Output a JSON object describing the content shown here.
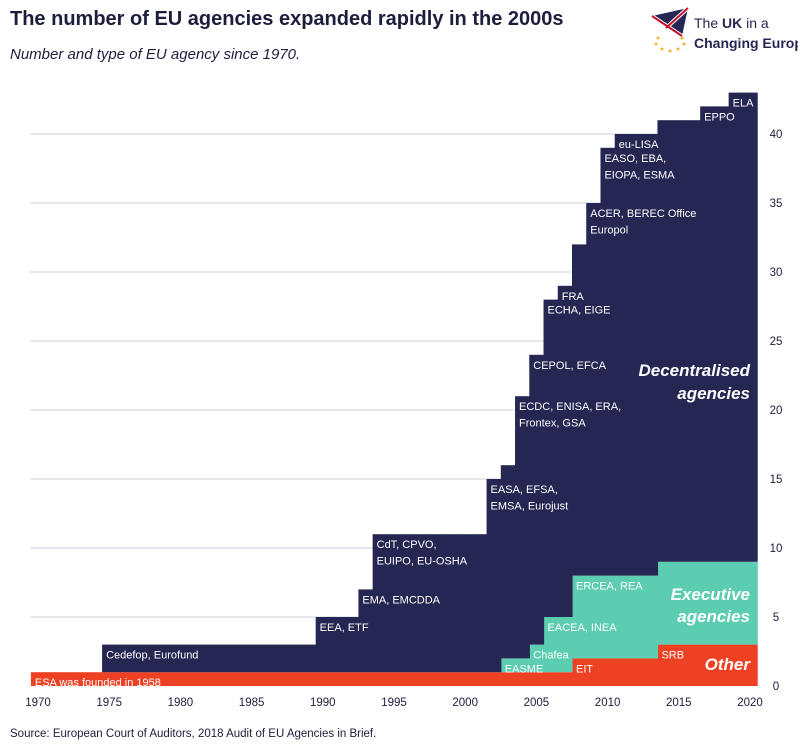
{
  "header": {
    "title": "The number of EU agencies expanded rapidly in the 2000s",
    "subtitle": "Number and type of EU agency since 1970.",
    "logo_text": "The UK in a Changing Europe"
  },
  "footer": {
    "source": "Source: European Court of Auditors, 2018 Audit of EU Agencies in Brief."
  },
  "colors": {
    "decentralised": "#262653",
    "executive": "#5ccdb0",
    "other": "#ee4023",
    "grid": "#cfcfdc",
    "text": "#1d1d3d"
  },
  "chart_data": {
    "type": "area",
    "stacked": true,
    "step": true,
    "xlim": [
      1970,
      2020
    ],
    "ylim": [
      0,
      43
    ],
    "x_ticks": [
      "1970",
      "1975",
      "1980",
      "1985",
      "1990",
      "1995",
      "2000",
      "2005",
      "2010",
      "2015",
      "2020"
    ],
    "y_ticks": [
      "0",
      "5",
      "10",
      "15",
      "20",
      "25",
      "30",
      "35",
      "40"
    ],
    "y_axis_side": "right",
    "grid": true,
    "x": [
      1970,
      1971,
      1972,
      1973,
      1974,
      1975,
      1976,
      1977,
      1978,
      1979,
      1980,
      1981,
      1982,
      1983,
      1984,
      1985,
      1986,
      1987,
      1988,
      1989,
      1990,
      1991,
      1992,
      1993,
      1994,
      1995,
      1996,
      1997,
      1998,
      1999,
      2000,
      2001,
      2002,
      2003,
      2004,
      2005,
      2006,
      2007,
      2008,
      2009,
      2010,
      2011,
      2012,
      2013,
      2014,
      2015,
      2016,
      2017,
      2018,
      2019,
      2020
    ],
    "series": [
      {
        "name": "Other",
        "color": "#ee4023",
        "values": [
          1,
          1,
          1,
          1,
          1,
          1,
          1,
          1,
          1,
          1,
          1,
          1,
          1,
          1,
          1,
          1,
          1,
          1,
          1,
          1,
          1,
          1,
          1,
          1,
          1,
          1,
          1,
          1,
          1,
          1,
          1,
          1,
          1,
          1,
          1,
          1,
          1,
          1,
          2,
          2,
          2,
          2,
          2,
          2,
          3,
          3,
          3,
          3,
          3,
          3,
          3
        ]
      },
      {
        "name": "Executive agencies",
        "color": "#5ccdb0",
        "values": [
          0,
          0,
          0,
          0,
          0,
          0,
          0,
          0,
          0,
          0,
          0,
          0,
          0,
          0,
          0,
          0,
          0,
          0,
          0,
          0,
          0,
          0,
          0,
          0,
          0,
          0,
          0,
          0,
          0,
          0,
          0,
          0,
          0,
          1,
          1,
          2,
          4,
          4,
          6,
          6,
          6,
          6,
          6,
          6,
          6,
          6,
          6,
          6,
          6,
          6,
          6
        ]
      },
      {
        "name": "Decentralised agencies",
        "color": "#262653",
        "values": [
          0,
          0,
          0,
          0,
          0,
          2,
          2,
          2,
          2,
          2,
          2,
          2,
          2,
          2,
          2,
          2,
          2,
          2,
          2,
          2,
          4,
          4,
          4,
          6,
          10,
          10,
          10,
          10,
          10,
          10,
          10,
          10,
          14,
          14,
          19,
          21,
          23,
          24,
          24,
          27,
          31,
          32,
          32,
          32,
          32,
          32,
          32,
          33,
          33,
          34,
          34
        ]
      }
    ],
    "series_labels": [
      [
        "Decentralised",
        "agencies"
      ],
      [
        "Executive",
        "agencies"
      ],
      [
        "Other"
      ]
    ],
    "annotations": [
      {
        "year": 1970,
        "series": "Other",
        "lines": [
          "ESA was founded in 1958"
        ]
      },
      {
        "year": 1975,
        "series": "Decentralised agencies",
        "lines": [
          "Cedefop, Eurofund"
        ]
      },
      {
        "year": 1990,
        "series": "Decentralised agencies",
        "lines": [
          "EEA, ETF"
        ]
      },
      {
        "year": 1993,
        "series": "Decentralised agencies",
        "lines": [
          "EMA, EMCDDA"
        ]
      },
      {
        "year": 1994,
        "series": "Decentralised agencies",
        "lines": [
          "CdT, CPVO,",
          "EUIPO, EU-OSHA"
        ]
      },
      {
        "year": 2002,
        "series": "Decentralised agencies",
        "lines": [
          "EASA, EFSA,",
          "EMSA, Eurojust"
        ]
      },
      {
        "year": 2004,
        "series": "Decentralised agencies",
        "lines": [
          "ECDC, ENISA, ERA,",
          "Frontex, GSA"
        ]
      },
      {
        "year": 2005,
        "series": "Decentralised agencies",
        "lines": [
          "CEPOL, EFCA"
        ]
      },
      {
        "year": 2006,
        "series": "Decentralised agencies",
        "lines": [
          "ECHA, EIGE"
        ]
      },
      {
        "year": 2007,
        "series": "Decentralised agencies",
        "lines": [
          "FRA"
        ]
      },
      {
        "year": 2009,
        "series": "Decentralised agencies",
        "lines": [
          "ACER, BEREC Office",
          "Europol"
        ]
      },
      {
        "year": 2010,
        "series": "Decentralised agencies",
        "lines": [
          "EASO, EBA,",
          "EIOPA, ESMA"
        ]
      },
      {
        "year": 2011,
        "series": "Decentralised agencies",
        "lines": [
          "eu-LISA"
        ]
      },
      {
        "year": 2017,
        "series": "Decentralised agencies",
        "lines": [
          "EPPO"
        ]
      },
      {
        "year": 2019,
        "series": "Decentralised agencies",
        "lines": [
          "ELA"
        ]
      },
      {
        "year": 2003,
        "series": "Executive agencies",
        "lines": [
          "EASME"
        ]
      },
      {
        "year": 2005,
        "series": "Executive agencies",
        "lines": [
          "Chafea"
        ]
      },
      {
        "year": 2006,
        "series": "Executive agencies",
        "lines": [
          "EACEA, INEA"
        ]
      },
      {
        "year": 2008,
        "series": "Executive agencies",
        "lines": [
          "ERCEA, REA"
        ]
      },
      {
        "year": 2008,
        "series": "Other",
        "lines": [
          "EIT"
        ]
      },
      {
        "year": 2014,
        "series": "Other",
        "lines": [
          "SRB"
        ]
      }
    ]
  }
}
